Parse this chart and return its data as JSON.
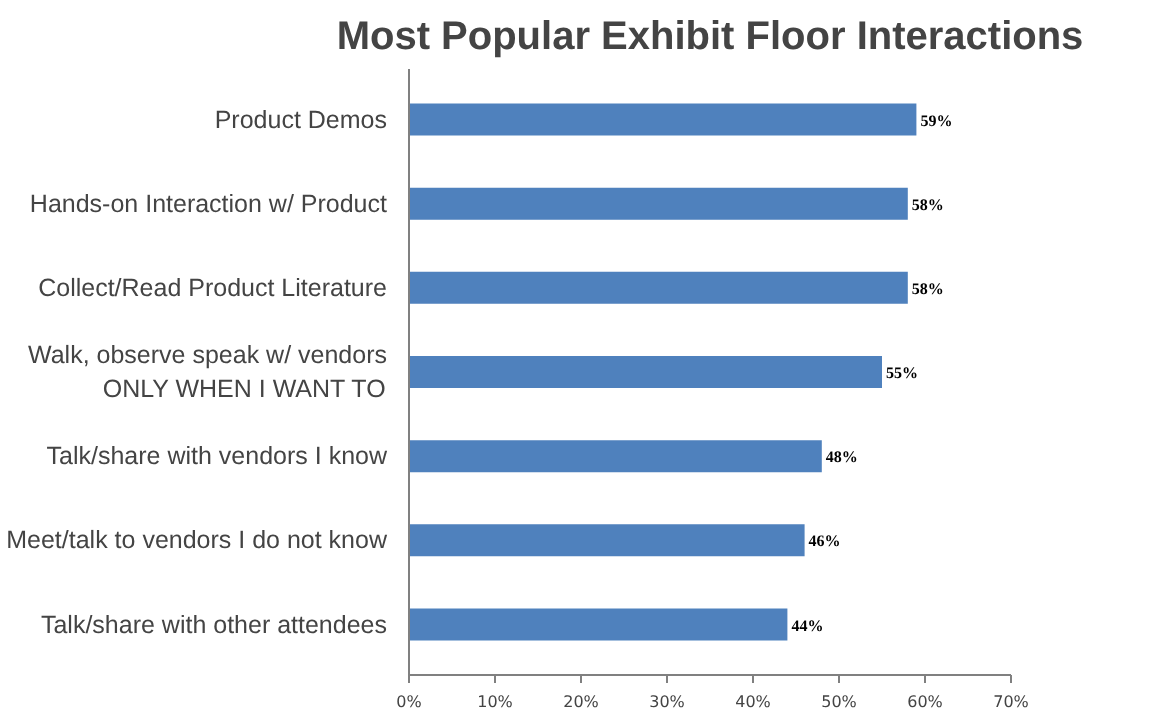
{
  "chart_data": {
    "type": "bar",
    "orientation": "horizontal",
    "title": "Most Popular Exhibit Floor Interactions",
    "categories": [
      "Product Demos",
      "Hands-on Interaction w/ Product",
      "Collect/Read Product Literature",
      "Walk, observe speak w/ vendors\nONLY WHEN I WANT TO",
      "Talk/share with vendors I know",
      "Meet/talk to vendors I do not know",
      "Talk/share with other attendees"
    ],
    "values": [
      59,
      58,
      58,
      55,
      48,
      46,
      44
    ],
    "value_labels": [
      "59%",
      "58%",
      "58%",
      "55%",
      "48%",
      "46%",
      "44%"
    ],
    "color": "#4f81bd",
    "xlim": [
      0,
      70
    ],
    "xticks": [
      {
        "value": 0,
        "label": "0%"
      },
      {
        "value": 10,
        "label": "10%"
      },
      {
        "value": 20,
        "label": "20%"
      },
      {
        "value": 30,
        "label": "30%"
      },
      {
        "value": 40,
        "label": "40%"
      },
      {
        "value": 50,
        "label": "50%"
      },
      {
        "value": 60,
        "label": "60%"
      },
      {
        "value": 70,
        "label": "70%"
      }
    ],
    "grid": false
  }
}
